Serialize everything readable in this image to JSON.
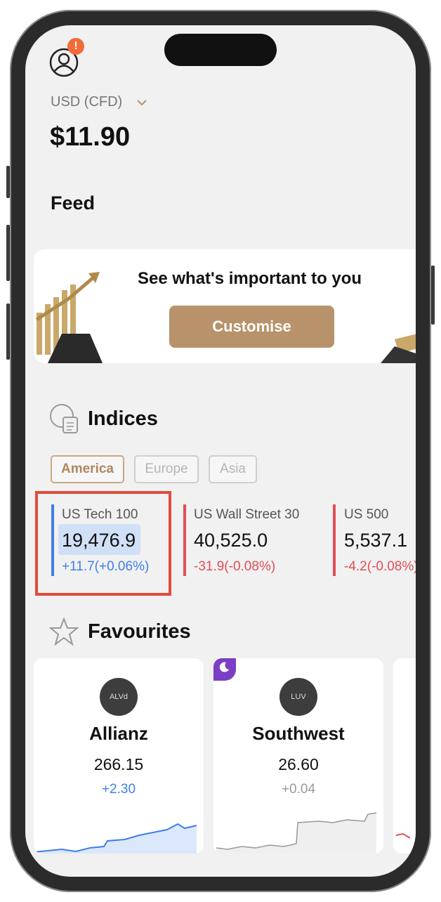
{
  "header": {
    "badge": "!",
    "currency": "USD (CFD)",
    "balance": "$11.90"
  },
  "feed": {
    "title": "Feed",
    "banner_text": "See what's important to you",
    "button": "Customise"
  },
  "indices": {
    "title": "Indices",
    "tabs": [
      "America",
      "Europe",
      "Asia"
    ],
    "items": [
      {
        "name": "US Tech 100",
        "value": "19,476.9",
        "change": "+11.7(+0.06%)"
      },
      {
        "name": "US Wall Street 30",
        "value": "40,525.0",
        "change": "-31.9(-0.08%)"
      },
      {
        "name": "US 500",
        "value": "5,537.1",
        "change": "-4.2(-0.08%)"
      }
    ]
  },
  "favourites": {
    "title": "Favourites",
    "items": [
      {
        "symbol": "ALVd",
        "name": "Allianz",
        "price": "266.15",
        "change": "+2.30"
      },
      {
        "symbol": "LUV",
        "name": "Southwest",
        "price": "26.60",
        "change": "+0.04"
      }
    ]
  }
}
